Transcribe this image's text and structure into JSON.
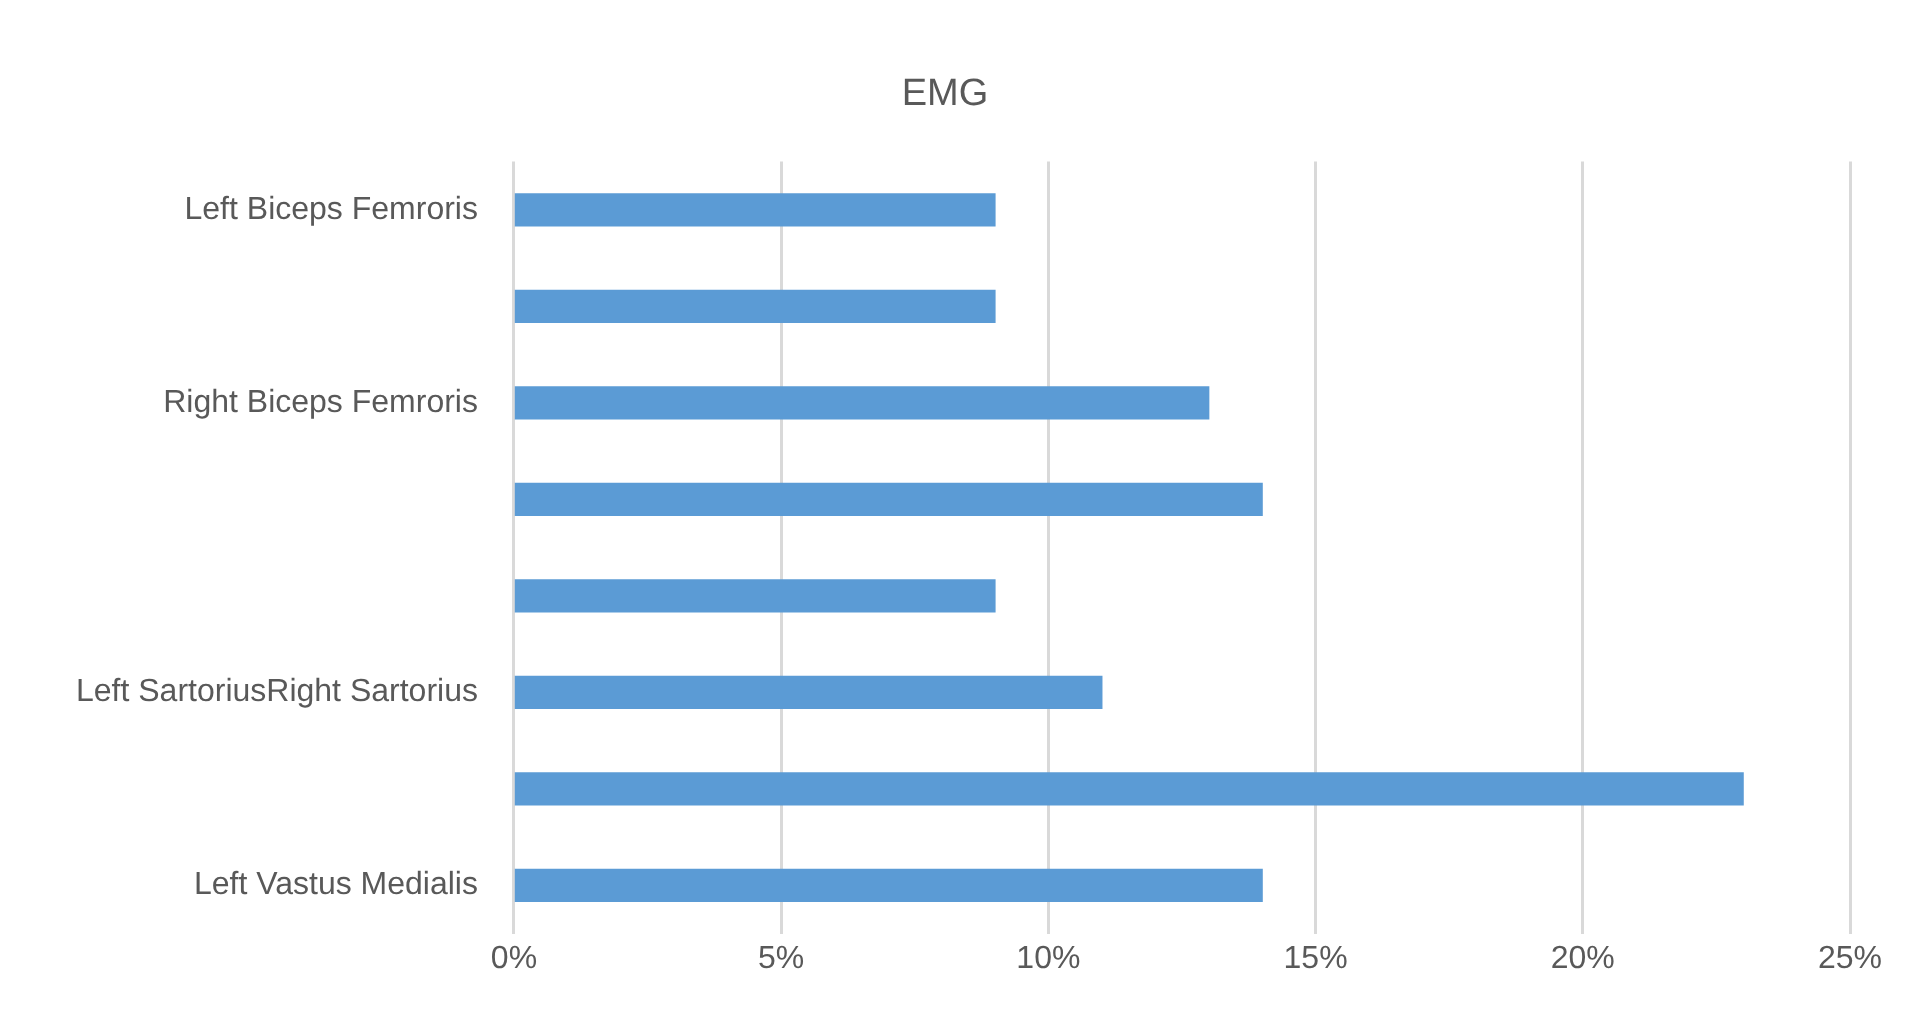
{
  "chart_data": {
    "type": "bar",
    "orientation": "horizontal",
    "title": "EMG",
    "categories": [
      "Left Biceps Femroris",
      null,
      "Right Biceps Femroris",
      null,
      null,
      "Left SartoriusRight Sartorius",
      null,
      "Left Vastus Medialis"
    ],
    "values": [
      9,
      9,
      13,
      14,
      9,
      11,
      23,
      14
    ],
    "color": "#5b9bd5",
    "xlim": [
      0,
      25
    ],
    "xticks": [
      {
        "value": 0,
        "label": "0%"
      },
      {
        "value": 5,
        "label": "5%"
      },
      {
        "value": 10,
        "label": "10%"
      },
      {
        "value": 15,
        "label": "15%"
      },
      {
        "value": 20,
        "label": "20%"
      },
      {
        "value": 25,
        "label": "25%"
      }
    ],
    "grid": "x",
    "legend": false
  }
}
